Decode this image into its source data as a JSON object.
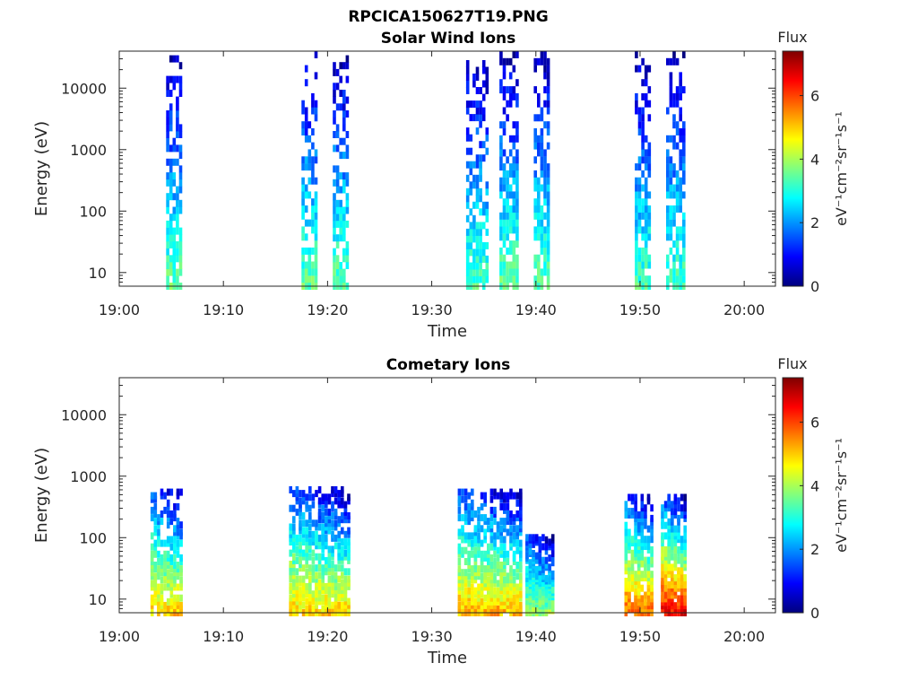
{
  "figure_title": "RPCICA150627T19.PNG",
  "chart_data": [
    {
      "type": "heatmap",
      "title": "Solar Wind Ions",
      "xlabel": "Time",
      "ylabel": "Energy (eV)",
      "x_range": [
        "19:00",
        "20:03"
      ],
      "x_ticks": [
        "19:00",
        "19:10",
        "19:20",
        "19:30",
        "19:40",
        "19:50",
        "20:00"
      ],
      "y_scale": "log",
      "y_range": [
        6,
        40000
      ],
      "y_ticks": [
        "10",
        "100",
        "1000",
        "10000"
      ],
      "colorbar": {
        "title": "Flux",
        "unit": "eV⁻¹cm⁻²sr⁻¹s⁻¹",
        "range": [
          0,
          7.4
        ],
        "ticks": [
          "0",
          "2",
          "4",
          "6"
        ]
      },
      "grid": false,
      "bursts": [
        {
          "start": "19:04.5",
          "end": "19:06.0",
          "e_min": 6,
          "e_max": 30000,
          "flux_low": 3.5,
          "flux_high": 0.4
        },
        {
          "start": "19:17.5",
          "end": "19:19.0",
          "e_min": 6,
          "e_max": 35000,
          "flux_low": 3.5,
          "flux_high": 0.4
        },
        {
          "start": "19:20.5",
          "end": "19:22.0",
          "e_min": 6,
          "e_max": 30000,
          "flux_low": 3.5,
          "flux_high": 0.4
        },
        {
          "start": "19:33.3",
          "end": "19:35.3",
          "e_min": 6,
          "e_max": 25000,
          "flux_low": 3.3,
          "flux_high": 0.5
        },
        {
          "start": "19:36.5",
          "end": "19:38.2",
          "e_min": 6,
          "e_max": 35000,
          "flux_low": 3.5,
          "flux_high": 0.4
        },
        {
          "start": "19:39.8",
          "end": "19:41.3",
          "e_min": 6,
          "e_max": 35000,
          "flux_low": 3.5,
          "flux_high": 0.4
        },
        {
          "start": "19:49.5",
          "end": "19:51.0",
          "e_min": 6,
          "e_max": 35000,
          "flux_low": 3.3,
          "flux_high": 0.4
        },
        {
          "start": "19:52.5",
          "end": "19:54.2",
          "e_min": 6,
          "e_max": 35000,
          "flux_low": 3.3,
          "flux_high": 0.4
        }
      ]
    },
    {
      "type": "heatmap",
      "title": "Cometary Ions",
      "xlabel": "Time",
      "ylabel": "Energy (eV)",
      "x_range": [
        "19:00",
        "20:03"
      ],
      "x_ticks": [
        "19:00",
        "19:10",
        "19:20",
        "19:30",
        "19:40",
        "19:50",
        "20:00"
      ],
      "y_scale": "log",
      "y_range": [
        6,
        40000
      ],
      "y_ticks": [
        "10",
        "100",
        "1000",
        "10000"
      ],
      "colorbar": {
        "title": "Flux",
        "unit": "eV⁻¹cm⁻²sr⁻¹s⁻¹",
        "range": [
          0,
          7.4
        ],
        "ticks": [
          "0",
          "2",
          "4",
          "6"
        ]
      },
      "grid": false,
      "bursts": [
        {
          "start": "19:03.0",
          "end": "19:06.0",
          "e_min": 6,
          "e_max": 550,
          "flux_low": 5.0,
          "flux_high": 1.5
        },
        {
          "start": "19:16.3",
          "end": "19:22.0",
          "e_min": 6,
          "e_max": 600,
          "flux_low": 5.0,
          "flux_high": 1.5
        },
        {
          "start": "19:32.5",
          "end": "19:38.5",
          "e_min": 6,
          "e_max": 550,
          "flux_low": 5.2,
          "flux_high": 1.5
        },
        {
          "start": "19:39.0",
          "end": "19:41.5",
          "e_min": 6,
          "e_max": 100,
          "flux_low": 4.0,
          "flux_high": 1.5
        },
        {
          "start": "19:48.5",
          "end": "19:51.0",
          "e_min": 6,
          "e_max": 450,
          "flux_low": 5.8,
          "flux_high": 1.5
        },
        {
          "start": "19:52.0",
          "end": "19:54.2",
          "e_min": 6,
          "e_max": 450,
          "flux_low": 6.6,
          "flux_high": 1.5
        }
      ]
    }
  ]
}
